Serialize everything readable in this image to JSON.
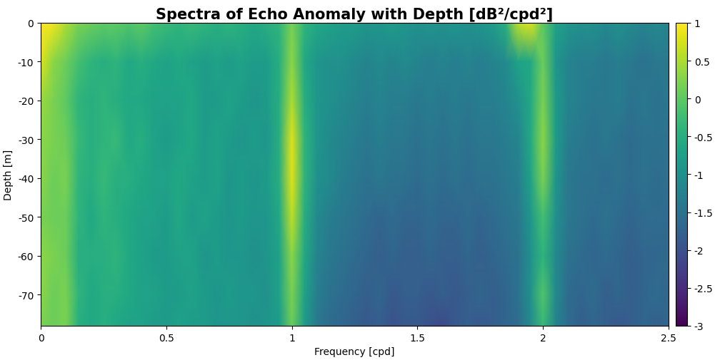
{
  "chart_data": {
    "type": "heatmap",
    "title": "Spectra of Echo Anomaly with Depth [dB²/cpd²]",
    "x_label": "Frequency [cpd]",
    "y_label": "Depth [m]",
    "x": [
      0,
      0.05,
      0.1,
      0.15,
      0.2,
      0.25,
      0.3,
      0.35,
      0.4,
      0.45,
      0.5,
      0.55,
      0.6,
      0.65,
      0.7,
      0.75,
      0.8,
      0.85,
      0.9,
      0.95,
      1.0,
      1.05,
      1.1,
      1.15,
      1.2,
      1.25,
      1.3,
      1.35,
      1.4,
      1.45,
      1.5,
      1.55,
      1.6,
      1.65,
      1.7,
      1.75,
      1.8,
      1.85,
      1.9,
      1.95,
      2.0,
      2.05,
      2.1,
      2.15,
      2.2,
      2.25,
      2.3,
      2.35,
      2.4,
      2.45,
      2.5
    ],
    "y": [
      0,
      -10,
      -20,
      -30,
      -40,
      -50,
      -60,
      -70,
      -78
    ],
    "z": [
      [
        1.0,
        0.9,
        0.5,
        0.2,
        0.1,
        0.0,
        0.0,
        -0.1,
        0.0,
        -0.2,
        -0.3,
        -0.4,
        -0.3,
        -0.4,
        -0.5,
        -0.4,
        -0.5,
        -0.6,
        -0.5,
        -0.4,
        0.2,
        -0.4,
        -0.6,
        -0.7,
        -0.8,
        -0.8,
        -0.9,
        -0.9,
        -0.8,
        -0.9,
        -1.0,
        -0.9,
        -1.0,
        -0.9,
        -1.0,
        -0.9,
        -0.8,
        -0.5,
        0.6,
        0.8,
        0.0,
        -0.7,
        -0.9,
        -1.0,
        -1.0,
        -1.1,
        -1.0,
        -1.1,
        -1.2,
        -1.1,
        -1.2
      ],
      [
        0.8,
        0.3,
        0.1,
        -0.2,
        -0.4,
        -0.5,
        -0.4,
        -0.6,
        -0.5,
        -0.6,
        -0.7,
        -0.6,
        -0.7,
        -0.8,
        -0.7,
        -0.8,
        -0.7,
        -0.8,
        -0.8,
        -0.5,
        0.3,
        -0.6,
        -0.9,
        -1.0,
        -1.0,
        -1.1,
        -1.2,
        -1.1,
        -1.2,
        -1.1,
        -1.2,
        -1.3,
        -1.2,
        -1.3,
        -1.2,
        -1.3,
        -1.2,
        -1.1,
        -0.7,
        -0.6,
        0.1,
        -0.9,
        -1.2,
        -1.3,
        -1.3,
        -1.4,
        -1.3,
        -1.4,
        -1.5,
        -1.4,
        -1.4
      ],
      [
        0.4,
        0.2,
        0.0,
        -0.4,
        -0.5,
        -0.4,
        -0.5,
        -0.6,
        -0.6,
        -0.7,
        -0.7,
        -0.7,
        -0.6,
        -0.8,
        -0.8,
        -0.7,
        -0.8,
        -0.9,
        -0.8,
        -0.5,
        0.5,
        -0.5,
        -0.9,
        -1.0,
        -1.1,
        -1.2,
        -1.3,
        -1.2,
        -1.3,
        -1.3,
        -1.4,
        -1.3,
        -1.4,
        -1.3,
        -1.4,
        -1.3,
        -1.3,
        -1.2,
        -1.0,
        -0.6,
        0.2,
        -0.8,
        -1.2,
        -1.3,
        -1.4,
        -1.4,
        -1.3,
        -1.5,
        -1.4,
        -1.5,
        -1.4
      ],
      [
        0.3,
        0.2,
        0.1,
        -0.3,
        -0.5,
        -0.4,
        -0.3,
        -0.6,
        -0.5,
        -0.7,
        -0.8,
        -0.7,
        -0.6,
        -0.8,
        -0.7,
        -0.8,
        -0.9,
        -0.8,
        -0.9,
        -0.5,
        0.8,
        -0.4,
        -0.9,
        -1.1,
        -1.2,
        -1.3,
        -1.4,
        -1.3,
        -1.4,
        -1.4,
        -1.5,
        -1.4,
        -1.5,
        -1.4,
        -1.5,
        -1.4,
        -1.4,
        -1.3,
        -1.2,
        -0.6,
        0.3,
        -0.8,
        -1.3,
        -1.4,
        -1.5,
        -1.4,
        -1.5,
        -1.6,
        -1.5,
        -1.5,
        -1.5
      ],
      [
        0.3,
        0.1,
        0.2,
        -0.4,
        -0.5,
        -0.3,
        -0.5,
        -0.5,
        -0.6,
        -0.7,
        -0.7,
        -0.6,
        -0.7,
        -0.8,
        -0.7,
        -0.9,
        -0.8,
        -0.9,
        -0.8,
        -0.5,
        0.8,
        -0.4,
        -1.0,
        -1.1,
        -1.3,
        -1.4,
        -1.5,
        -1.4,
        -1.5,
        -1.5,
        -1.6,
        -1.5,
        -1.6,
        -1.5,
        -1.6,
        -1.5,
        -1.5,
        -1.4,
        -1.3,
        -0.7,
        0.2,
        -0.9,
        -1.4,
        -1.5,
        -1.5,
        -1.6,
        -1.5,
        -1.6,
        -1.5,
        -1.6,
        -1.5
      ],
      [
        0.2,
        0.1,
        0.1,
        -0.4,
        -0.6,
        -0.4,
        -0.5,
        -0.6,
        -0.7,
        -0.7,
        -0.8,
        -0.6,
        -0.8,
        -0.7,
        -0.8,
        -0.9,
        -0.8,
        -0.9,
        -0.9,
        -0.6,
        0.6,
        -0.5,
        -1.1,
        -1.3,
        -1.4,
        -1.5,
        -1.6,
        -1.7,
        -1.6,
        -1.7,
        -1.7,
        -1.6,
        -1.7,
        -1.7,
        -1.6,
        -1.7,
        -1.6,
        -1.5,
        -1.4,
        -0.9,
        -0.2,
        -1.0,
        -1.4,
        -1.5,
        -1.6,
        -1.5,
        -1.6,
        -1.7,
        -1.6,
        -1.6,
        -1.6
      ],
      [
        0.3,
        0.2,
        0.1,
        -0.5,
        -0.5,
        -0.5,
        -0.4,
        -0.6,
        -0.7,
        -0.8,
        -0.8,
        -0.7,
        -0.7,
        -0.9,
        -0.8,
        -0.9,
        -0.9,
        -1.0,
        -0.9,
        -0.7,
        0.3,
        -0.6,
        -1.2,
        -1.4,
        -1.5,
        -1.6,
        -1.7,
        -1.8,
        -1.7,
        -1.8,
        -1.8,
        -1.7,
        -1.8,
        -1.8,
        -1.7,
        -1.8,
        -1.7,
        -1.6,
        -1.5,
        -1.0,
        -0.4,
        -1.1,
        -1.5,
        -1.6,
        -1.7,
        -1.6,
        -1.7,
        -1.8,
        -1.7,
        -1.7,
        -1.6
      ],
      [
        0.3,
        0.1,
        0.2,
        -0.4,
        -0.6,
        -0.5,
        -0.5,
        -0.6,
        -0.7,
        -0.7,
        -0.8,
        -0.8,
        -0.7,
        -0.8,
        -0.9,
        -0.8,
        -0.9,
        -0.9,
        -1.0,
        -0.7,
        0.2,
        -0.7,
        -1.3,
        -1.5,
        -1.6,
        -1.7,
        -1.8,
        -1.7,
        -1.9,
        -1.8,
        -1.8,
        -1.9,
        -1.8,
        -1.9,
        -1.8,
        -1.7,
        -1.8,
        -1.7,
        -1.5,
        -1.0,
        -0.1,
        -1.1,
        -1.6,
        -1.7,
        -1.6,
        -1.8,
        -1.7,
        -1.8,
        -1.7,
        -1.6,
        -1.7
      ],
      [
        0.2,
        0.1,
        0.2,
        -0.5,
        -0.6,
        -0.5,
        -0.6,
        -0.7,
        -0.7,
        -0.8,
        -0.8,
        -0.7,
        -0.8,
        -0.8,
        -0.9,
        -0.9,
        -0.9,
        -1.0,
        -0.9,
        -0.8,
        0.1,
        -0.8,
        -1.4,
        -1.6,
        -1.7,
        -1.8,
        -1.9,
        -1.8,
        -2.0,
        -1.9,
        -1.9,
        -2.0,
        -2.1,
        -1.9,
        -1.8,
        -1.9,
        -1.8,
        -1.7,
        -1.6,
        -1.1,
        -0.3,
        -1.2,
        -1.6,
        -1.8,
        -1.7,
        -1.8,
        -1.9,
        -1.8,
        -1.7,
        -1.8,
        -1.7
      ]
    ],
    "xlim": [
      0,
      2.5
    ],
    "ylim": [
      -78,
      0
    ],
    "xticks": [
      0,
      0.5,
      1,
      1.5,
      2,
      2.5
    ],
    "yticks": [
      0,
      -10,
      -20,
      -30,
      -40,
      -50,
      -60,
      -70
    ],
    "colorbar": {
      "range": [
        -3,
        1
      ],
      "ticks": [
        -3,
        -2.5,
        -2,
        -1.5,
        -1,
        -0.5,
        0,
        0.5,
        1
      ]
    }
  }
}
